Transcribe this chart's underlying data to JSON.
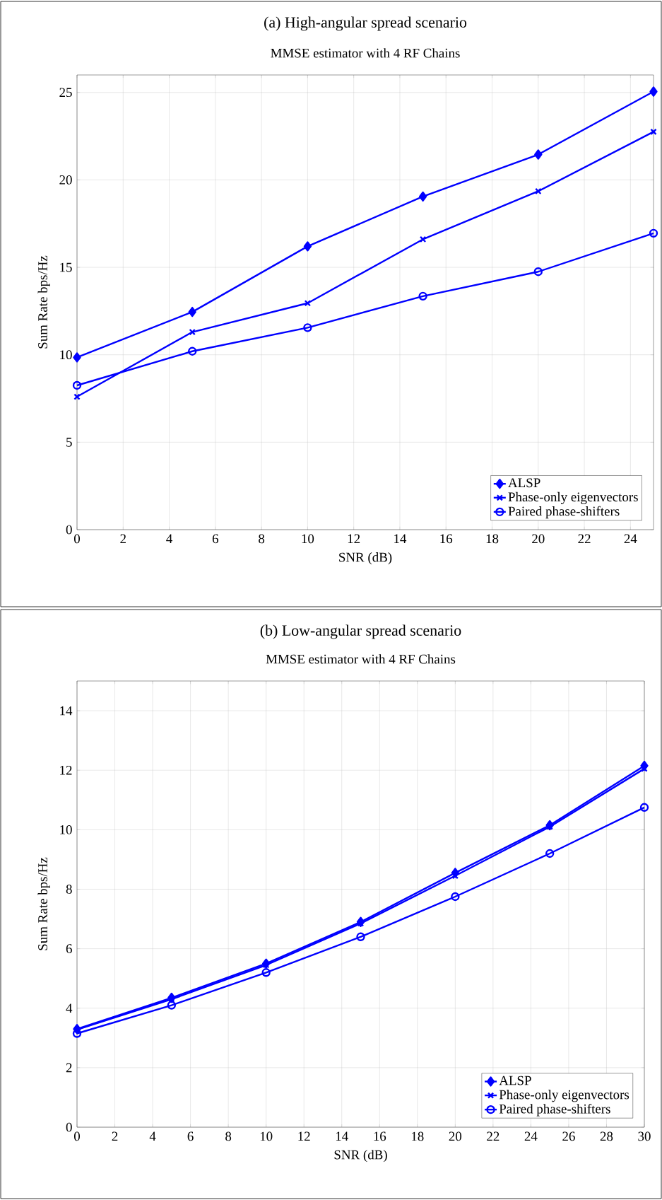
{
  "chart_data": [
    {
      "type": "line",
      "title": "(a) High-angular spread scenario",
      "subtitle": "MMSE estimator with 4 RF Chains",
      "xlabel": "SNR (dB)",
      "ylabel": "Sum Rate bps/Hz",
      "x": [
        0,
        5,
        10,
        15,
        20,
        25
      ],
      "xlim": [
        0,
        25
      ],
      "ylim": [
        0,
        26
      ],
      "xticks": [
        0,
        2,
        4,
        6,
        8,
        10,
        12,
        14,
        16,
        18,
        20,
        22,
        24
      ],
      "yticks": [
        0,
        5,
        10,
        15,
        20,
        25
      ],
      "grid": true,
      "legend": "bottom right",
      "line_style": "solid",
      "series": [
        {
          "name": "ALSP",
          "color": "#0000ff",
          "marker": "diamond",
          "values": [
            9.85,
            12.45,
            16.2,
            19.05,
            21.45,
            25.05
          ]
        },
        {
          "name": "Phase-only eigenvectors",
          "color": "#0000ff",
          "marker": "cross",
          "values": [
            7.6,
            11.3,
            12.95,
            16.6,
            19.35,
            22.75
          ]
        },
        {
          "name": "Paired phase-shifters",
          "color": "#0000ff",
          "marker": "circle",
          "values": [
            8.25,
            10.2,
            11.55,
            13.35,
            14.75,
            16.95
          ]
        }
      ]
    },
    {
      "type": "line",
      "title": "(b) Low-angular spread scenario",
      "subtitle": "MMSE estimator with 4 RF Chains",
      "xlabel": "SNR (dB)",
      "ylabel": "Sum Rate bps/Hz",
      "x": [
        0,
        5,
        10,
        15,
        20,
        25,
        30
      ],
      "xlim": [
        0,
        30
      ],
      "ylim": [
        0,
        15
      ],
      "xticks": [
        0,
        2,
        4,
        6,
        8,
        10,
        12,
        14,
        16,
        18,
        20,
        22,
        24,
        26,
        28,
        30
      ],
      "yticks": [
        0,
        2,
        4,
        6,
        8,
        10,
        12,
        14
      ],
      "grid": true,
      "legend": "bottom right",
      "line_style": "solid",
      "series": [
        {
          "name": "ALSP",
          "color": "#0000ff",
          "marker": "diamond",
          "values": [
            3.3,
            4.35,
            5.5,
            6.9,
            8.55,
            10.15,
            12.15
          ]
        },
        {
          "name": "Phase-only eigenvectors",
          "color": "#0000ff",
          "marker": "cross",
          "values": [
            3.28,
            4.3,
            5.45,
            6.85,
            8.45,
            10.1,
            12.05
          ]
        },
        {
          "name": "Paired phase-shifters",
          "color": "#0000ff",
          "marker": "circle",
          "values": [
            3.15,
            4.1,
            5.2,
            6.4,
            7.75,
            9.2,
            10.75
          ]
        }
      ]
    }
  ]
}
